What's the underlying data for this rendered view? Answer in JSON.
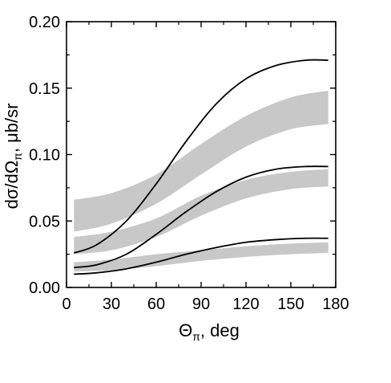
{
  "chart_data": {
    "type": "line",
    "title": "",
    "xlabel": "Θπ, deg",
    "xlabel_main": "Θ",
    "xlabel_sub": "π",
    "xlabel_rest": ", deg",
    "ylabel": "dσ/dΩπ, μb/sr",
    "ylabel_main": "dσ/dΩ",
    "ylabel_sub": "π",
    "ylabel_rest": ", μb/sr",
    "xlim": [
      0,
      180
    ],
    "ylim": [
      0,
      0.2
    ],
    "xticks": [
      0,
      30,
      60,
      90,
      120,
      150,
      180
    ],
    "xtick_labels": [
      "0",
      "30",
      "60",
      "90",
      "120",
      "150",
      "180"
    ],
    "yticks": [
      0.0,
      0.05,
      0.1,
      0.15,
      0.2
    ],
    "ytick_labels": [
      "0.00",
      "0.05",
      "0.10",
      "0.15",
      "0.20"
    ],
    "grid": false,
    "band_color": "#c8c8c8",
    "line_color": "#000000",
    "bands": [
      {
        "x": [
          5,
          30,
          60,
          90,
          120,
          150,
          175
        ],
        "lower": [
          0.042,
          0.048,
          0.063,
          0.085,
          0.106,
          0.119,
          0.123
        ],
        "upper": [
          0.066,
          0.071,
          0.085,
          0.108,
          0.129,
          0.143,
          0.148
        ]
      },
      {
        "x": [
          5,
          30,
          60,
          90,
          120,
          150,
          175
        ],
        "lower": [
          0.025,
          0.028,
          0.038,
          0.054,
          0.067,
          0.074,
          0.076
        ],
        "upper": [
          0.038,
          0.042,
          0.052,
          0.069,
          0.081,
          0.087,
          0.089
        ]
      },
      {
        "x": [
          5,
          30,
          60,
          90,
          120,
          150,
          175
        ],
        "lower": [
          0.012,
          0.013,
          0.016,
          0.02,
          0.023,
          0.025,
          0.026
        ],
        "upper": [
          0.019,
          0.021,
          0.025,
          0.028,
          0.031,
          0.033,
          0.034
        ]
      }
    ],
    "series": [
      {
        "x": [
          5,
          20,
          40,
          60,
          80,
          100,
          120,
          140,
          160,
          175
        ],
        "values": [
          0.026,
          0.032,
          0.05,
          0.078,
          0.11,
          0.138,
          0.157,
          0.167,
          0.171,
          0.171
        ]
      },
      {
        "x": [
          5,
          20,
          40,
          60,
          80,
          100,
          120,
          140,
          160,
          175
        ],
        "values": [
          0.015,
          0.017,
          0.025,
          0.04,
          0.057,
          0.072,
          0.083,
          0.089,
          0.091,
          0.091
        ]
      },
      {
        "x": [
          5,
          20,
          40,
          60,
          80,
          100,
          120,
          140,
          160,
          175
        ],
        "values": [
          0.01,
          0.011,
          0.014,
          0.019,
          0.025,
          0.03,
          0.034,
          0.036,
          0.037,
          0.037
        ]
      }
    ]
  }
}
